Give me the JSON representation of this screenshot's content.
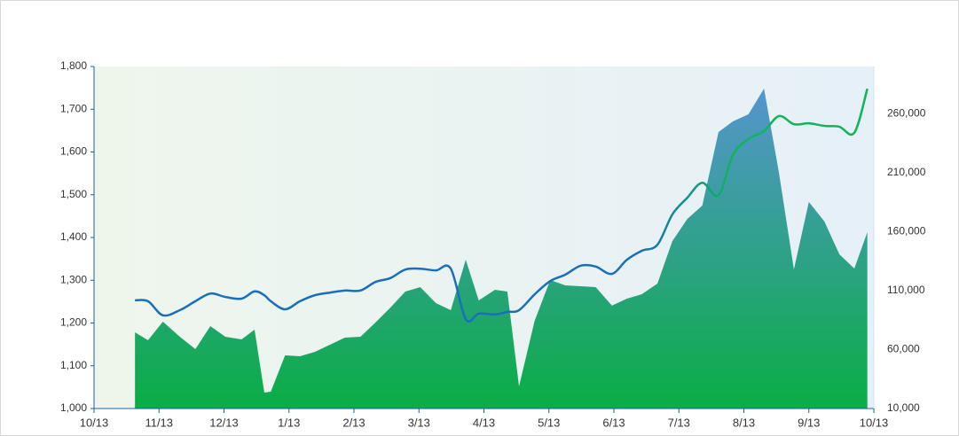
{
  "chart_data": {
    "type": "combo",
    "xlim": [
      0,
      12
    ],
    "xticks": [
      {
        "value": 0,
        "label": "10/13"
      },
      {
        "value": 1,
        "label": "11/13"
      },
      {
        "value": 2,
        "label": "12/13"
      },
      {
        "value": 3,
        "label": "1/13"
      },
      {
        "value": 4,
        "label": "2/13"
      },
      {
        "value": 5,
        "label": "3/13"
      },
      {
        "value": 6,
        "label": "4/13"
      },
      {
        "value": 7,
        "label": "5/13"
      },
      {
        "value": 8,
        "label": "6/13"
      },
      {
        "value": 9,
        "label": "7/13"
      },
      {
        "value": 10,
        "label": "8/13"
      },
      {
        "value": 11,
        "label": "9/13"
      },
      {
        "value": 12,
        "label": "10/13"
      }
    ],
    "ylim": [
      1000,
      1800
    ],
    "yticks": [
      {
        "value": 1000,
        "label": "1,000"
      },
      {
        "value": 1100,
        "label": "1,100"
      },
      {
        "value": 1200,
        "label": "1,200"
      },
      {
        "value": 1300,
        "label": "1,300"
      },
      {
        "value": 1400,
        "label": "1,400"
      },
      {
        "value": 1500,
        "label": "1,500"
      },
      {
        "value": 1600,
        "label": "1,600"
      },
      {
        "value": 1700,
        "label": "1,700"
      },
      {
        "value": 1800,
        "label": "1,800"
      }
    ],
    "y2lim": [
      10000,
      300000
    ],
    "y2ticks": [
      {
        "value": 10000,
        "label": "10,000"
      },
      {
        "value": 60000,
        "label": "60,000"
      },
      {
        "value": 110000,
        "label": "110,000"
      },
      {
        "value": 160000,
        "label": "160,000"
      },
      {
        "value": 210000,
        "label": "210,000"
      },
      {
        "value": 260000,
        "label": "260,000"
      }
    ],
    "x": [
      0.63,
      0.83,
      1.06,
      1.32,
      1.56,
      1.79,
      2.02,
      2.27,
      2.47,
      2.62,
      2.72,
      2.94,
      3.17,
      3.4,
      3.63,
      3.86,
      4.1,
      4.33,
      4.56,
      4.79,
      5.02,
      5.26,
      5.49,
      5.72,
      5.92,
      6.17,
      6.36,
      6.54,
      6.78,
      7.02,
      7.25,
      7.49,
      7.72,
      7.97,
      8.2,
      8.43,
      8.67,
      8.9,
      9.13,
      9.36,
      9.61,
      9.83,
      10.07,
      10.31,
      10.54,
      10.77,
      11.0,
      11.24,
      11.47,
      11.7,
      11.9
    ],
    "series": [
      {
        "type": "area",
        "axis": "y2",
        "color": [
          "#0aad45",
          "#5b93d8"
        ],
        "values": [
          74600,
          67900,
          83600,
          70900,
          60300,
          79900,
          70900,
          68600,
          76900,
          23500,
          24300,
          55100,
          54300,
          58100,
          64100,
          70100,
          70900,
          82900,
          95600,
          109200,
          112900,
          99400,
          93400,
          136200,
          101700,
          110700,
          109200,
          28800,
          84400,
          118900,
          114400,
          113700,
          112900,
          97200,
          103200,
          106900,
          115900,
          152000,
          170800,
          182000,
          244400,
          253400,
          259400,
          281200,
          209800,
          128000,
          185100,
          168500,
          140700,
          128700,
          159500
        ]
      },
      {
        "type": "line",
        "axis": "y",
        "color": [
          "#1a6fb8",
          "#10b55a"
        ],
        "values": [
          1253,
          1251,
          1218,
          1230,
          1251,
          1269,
          1261,
          1257,
          1274,
          1265,
          1251,
          1232,
          1251,
          1265,
          1271,
          1276,
          1276,
          1296,
          1305,
          1325,
          1327,
          1323,
          1327,
          1209,
          1222,
          1220,
          1226,
          1230,
          1267,
          1298,
          1313,
          1334,
          1332,
          1315,
          1348,
          1369,
          1383,
          1454,
          1493,
          1528,
          1499,
          1593,
          1630,
          1649,
          1684,
          1665,
          1667,
          1661,
          1659,
          1645,
          1748
        ]
      }
    ],
    "background": [
      "#eef6ec",
      "#e6f0f8"
    ],
    "axis_color": "#1f5fa0"
  }
}
